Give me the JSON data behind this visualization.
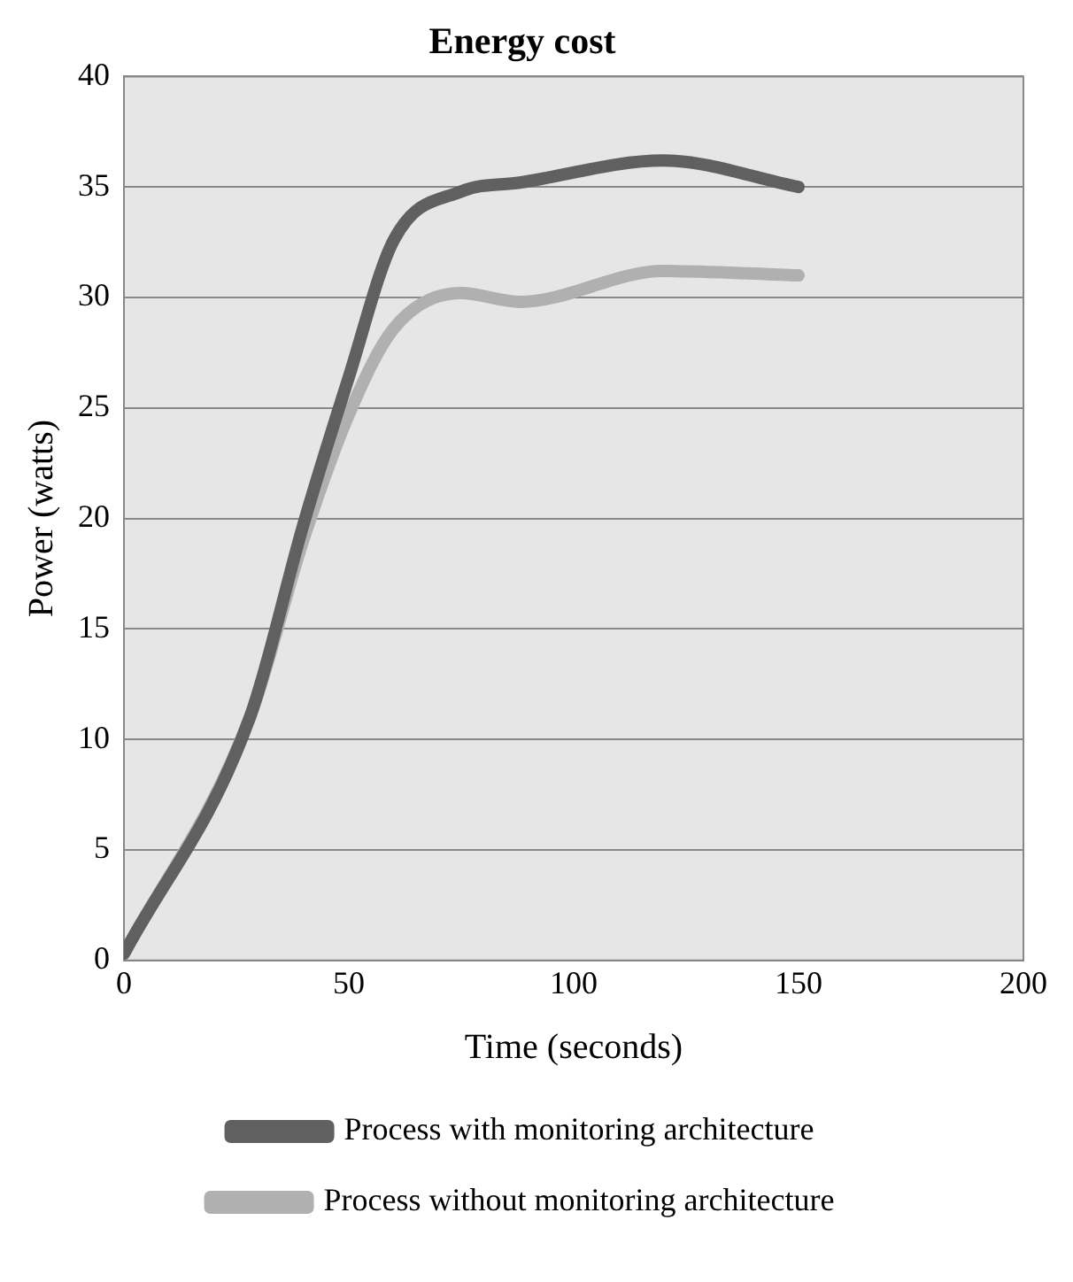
{
  "chart_data": {
    "type": "line",
    "title": "Energy cost",
    "xlabel": "Time (seconds)",
    "ylabel": "Power (watts)",
    "xlim": [
      0,
      200
    ],
    "xticks": [
      0,
      50,
      100,
      150,
      200
    ],
    "ylim": [
      0,
      40
    ],
    "yticks": [
      0,
      5,
      10,
      15,
      20,
      25,
      30,
      35,
      40
    ],
    "grid": "y",
    "legend": "bottom",
    "marker": "none",
    "line_style": "solid",
    "series": [
      {
        "name": "Process with monitoring architecture",
        "color": "#606060",
        "x": [
          0,
          28,
          40,
          50,
          60,
          75,
          88,
          120,
          150
        ],
        "values": [
          0.3,
          11,
          19.8,
          26.4,
          32.6,
          34.8,
          35.2,
          36.2,
          35
        ]
      },
      {
        "name": "Process without monitoring architecture",
        "color": "#b0b0b0",
        "x": [
          0,
          28,
          40,
          50,
          60,
          75,
          88,
          120,
          150
        ],
        "values": [
          0.3,
          11,
          19.1,
          24.7,
          28.6,
          30.2,
          29.8,
          31.2,
          31
        ]
      }
    ]
  }
}
